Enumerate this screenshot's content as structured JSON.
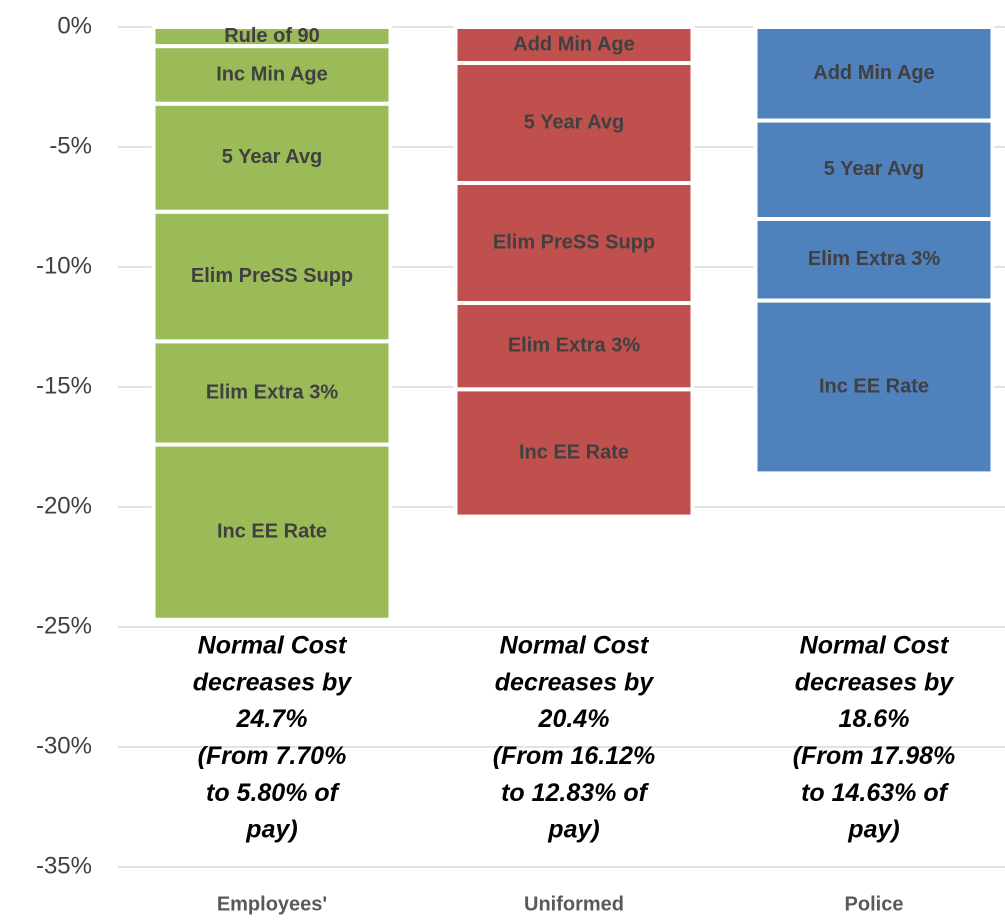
{
  "chart_data": {
    "type": "stacked_bar",
    "categories": [
      "Employees'",
      "Uniformed",
      "Police"
    ],
    "category_colors": [
      "#9bbb59",
      "#c0504d",
      "#4f81bd"
    ],
    "series": [
      {
        "name": "Rule of 90",
        "values": [
          -0.8,
          null,
          null
        ]
      },
      {
        "name": "Inc Min Age",
        "values": [
          -2.4,
          null,
          null
        ]
      },
      {
        "name": "Add Min Age",
        "values": [
          null,
          -1.5,
          -3.9
        ]
      },
      {
        "name": "5 Year Avg",
        "values": [
          -4.5,
          -5.0,
          -4.1
        ]
      },
      {
        "name": "Elim PreSS Supp",
        "values": [
          -5.4,
          -5.0,
          null
        ]
      },
      {
        "name": "Elim Extra 3%",
        "values": [
          -4.3,
          -3.6,
          -3.4
        ]
      },
      {
        "name": "Inc EE Rate",
        "values": [
          -7.3,
          -5.3,
          -7.2
        ]
      }
    ],
    "ylim": [
      -35,
      0
    ],
    "yticks": [
      {
        "value": 0,
        "label": "0%"
      },
      {
        "value": -5,
        "label": "-5%"
      },
      {
        "value": -10,
        "label": "-10%"
      },
      {
        "value": -15,
        "label": "-15%"
      },
      {
        "value": -20,
        "label": "-20%"
      },
      {
        "value": -25,
        "label": "-25%"
      },
      {
        "value": -30,
        "label": "-30%"
      },
      {
        "value": -35,
        "label": "-35%"
      }
    ],
    "grid": true,
    "annotations": [
      [
        "Normal Cost",
        "decreases by",
        "24.7%",
        "(From 7.70%",
        "to 5.80% of",
        "pay)"
      ],
      [
        "Normal Cost",
        "decreases by",
        "20.4%",
        "(From 16.12%",
        "to 12.83% of",
        "pay)"
      ],
      [
        "Normal Cost",
        "decreases by",
        "18.6%",
        "(From 17.98%",
        "to 14.63% of",
        "pay)"
      ]
    ]
  }
}
